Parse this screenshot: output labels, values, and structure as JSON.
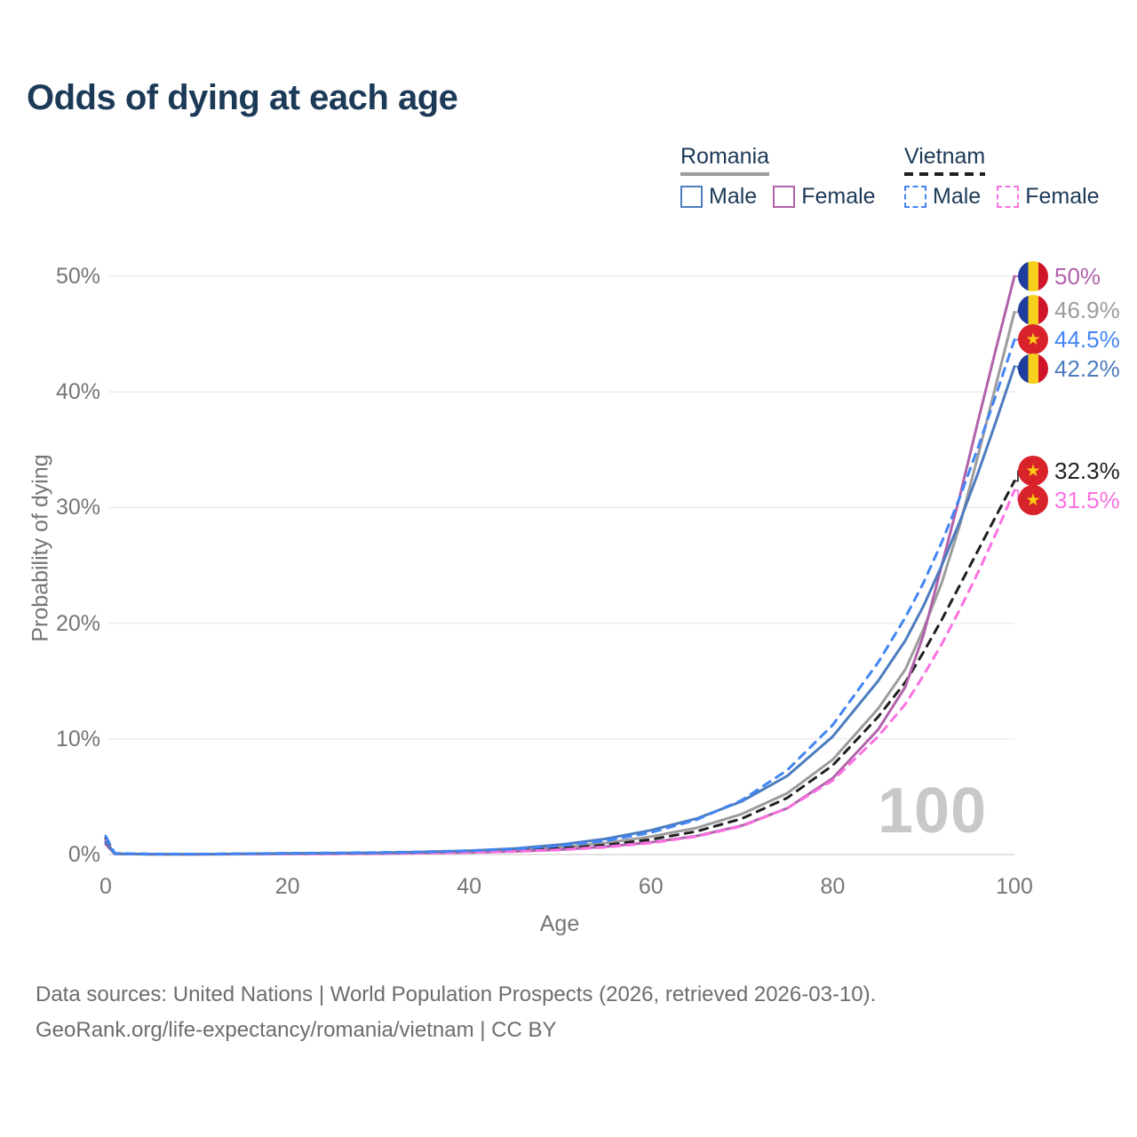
{
  "title": "Odds of dying at each age",
  "legend": {
    "groups": [
      {
        "id": "romania",
        "label": "Romania",
        "line_style": "solid",
        "line_color": "#9c9c9c",
        "items": [
          {
            "id": "romania-male",
            "label": "Male",
            "color": "#4c7cbe",
            "style": "solid"
          },
          {
            "id": "romania-female",
            "label": "Female",
            "color": "#b162ab",
            "style": "solid"
          }
        ]
      },
      {
        "id": "vietnam",
        "label": "Vietnam",
        "line_style": "dashed",
        "line_color": "#1f1f1f",
        "items": [
          {
            "id": "vietnam-male",
            "label": "Male",
            "color": "#4285f4",
            "style": "dashed"
          },
          {
            "id": "vietnam-female",
            "label": "Female",
            "color": "#fb71e1",
            "style": "dashed"
          }
        ]
      }
    ]
  },
  "chart_data": {
    "type": "line",
    "title": "Odds of dying at each age",
    "xlabel": "Age",
    "ylabel": "Probability of dying",
    "xlim": [
      0,
      100
    ],
    "ylim": [
      0,
      52
    ],
    "x_ticks": [
      0,
      20,
      40,
      60,
      80,
      100
    ],
    "y_ticks": [
      {
        "value": 0,
        "label": "0%"
      },
      {
        "value": 10,
        "label": "10%"
      },
      {
        "value": 20,
        "label": "20%"
      },
      {
        "value": 30,
        "label": "30%"
      },
      {
        "value": 40,
        "label": "40%"
      },
      {
        "value": 50,
        "label": "50%"
      }
    ],
    "grid": true,
    "legend_position": "top-right",
    "watermark": "100",
    "series": [
      {
        "id": "romania-total",
        "name": "Romania Total",
        "country": "Romania",
        "flag": "ro",
        "color": "#9c9c9c",
        "dashed": false,
        "end_value": 46.9,
        "end_label": "46.9%",
        "points": [
          [
            0,
            1.0
          ],
          [
            1,
            0.06
          ],
          [
            5,
            0.03
          ],
          [
            10,
            0.02
          ],
          [
            15,
            0.05
          ],
          [
            20,
            0.08
          ],
          [
            25,
            0.1
          ],
          [
            30,
            0.12
          ],
          [
            35,
            0.17
          ],
          [
            40,
            0.25
          ],
          [
            45,
            0.4
          ],
          [
            50,
            0.62
          ],
          [
            55,
            1.0
          ],
          [
            60,
            1.55
          ],
          [
            65,
            2.3
          ],
          [
            70,
            3.5
          ],
          [
            75,
            5.3
          ],
          [
            80,
            8.2
          ],
          [
            85,
            12.6
          ],
          [
            88,
            16.0
          ],
          [
            90,
            19.5
          ],
          [
            92,
            23.5
          ],
          [
            94,
            28.5
          ],
          [
            96,
            34.5
          ],
          [
            98,
            40.7
          ],
          [
            100,
            46.9
          ]
        ]
      },
      {
        "id": "vietnam-total",
        "name": "Vietnam Total",
        "country": "Vietnam",
        "flag": "vn",
        "color": "#1f1f1f",
        "dashed": true,
        "end_value": 32.3,
        "end_label": "32.3%",
        "points": [
          [
            0,
            1.4
          ],
          [
            1,
            0.09
          ],
          [
            5,
            0.04
          ],
          [
            10,
            0.03
          ],
          [
            15,
            0.06
          ],
          [
            20,
            0.09
          ],
          [
            25,
            0.11
          ],
          [
            30,
            0.14
          ],
          [
            35,
            0.18
          ],
          [
            40,
            0.24
          ],
          [
            45,
            0.35
          ],
          [
            50,
            0.52
          ],
          [
            55,
            0.82
          ],
          [
            60,
            1.3
          ],
          [
            65,
            2.0
          ],
          [
            70,
            3.1
          ],
          [
            75,
            4.9
          ],
          [
            80,
            7.7
          ],
          [
            85,
            11.9
          ],
          [
            88,
            14.9
          ],
          [
            90,
            17.5
          ],
          [
            92,
            20.3
          ],
          [
            94,
            23.3
          ],
          [
            96,
            26.3
          ],
          [
            98,
            29.3
          ],
          [
            100,
            32.3
          ]
        ]
      },
      {
        "id": "romania-female",
        "name": "Romania Female",
        "country": "Romania",
        "flag": "ro",
        "color": "#b162ab",
        "dashed": false,
        "end_value": 50.0,
        "end_label": "50%",
        "points": [
          [
            0,
            0.9
          ],
          [
            1,
            0.05
          ],
          [
            5,
            0.02
          ],
          [
            10,
            0.02
          ],
          [
            15,
            0.04
          ],
          [
            20,
            0.05
          ],
          [
            25,
            0.06
          ],
          [
            30,
            0.08
          ],
          [
            35,
            0.12
          ],
          [
            40,
            0.17
          ],
          [
            45,
            0.27
          ],
          [
            50,
            0.42
          ],
          [
            55,
            0.68
          ],
          [
            60,
            1.05
          ],
          [
            65,
            1.6
          ],
          [
            70,
            2.5
          ],
          [
            75,
            4.0
          ],
          [
            80,
            6.6
          ],
          [
            85,
            10.8
          ],
          [
            88,
            14.5
          ],
          [
            90,
            19.0
          ],
          [
            92,
            25.0
          ],
          [
            94,
            31.0
          ],
          [
            96,
            37.5
          ],
          [
            98,
            43.8
          ],
          [
            100,
            50.0
          ]
        ]
      },
      {
        "id": "vietnam-female",
        "name": "Vietnam Female",
        "country": "Vietnam",
        "flag": "vn",
        "color": "#fb71e1",
        "dashed": true,
        "end_value": 31.5,
        "end_label": "31.5%",
        "points": [
          [
            0,
            1.2
          ],
          [
            1,
            0.08
          ],
          [
            5,
            0.03
          ],
          [
            10,
            0.02
          ],
          [
            15,
            0.04
          ],
          [
            20,
            0.06
          ],
          [
            25,
            0.08
          ],
          [
            30,
            0.1
          ],
          [
            35,
            0.13
          ],
          [
            40,
            0.18
          ],
          [
            45,
            0.26
          ],
          [
            50,
            0.4
          ],
          [
            55,
            0.62
          ],
          [
            60,
            1.0
          ],
          [
            65,
            1.55
          ],
          [
            70,
            2.45
          ],
          [
            75,
            4.0
          ],
          [
            80,
            6.4
          ],
          [
            85,
            10.2
          ],
          [
            88,
            13.0
          ],
          [
            90,
            15.5
          ],
          [
            92,
            18.2
          ],
          [
            94,
            21.2
          ],
          [
            96,
            24.4
          ],
          [
            98,
            27.8
          ],
          [
            100,
            31.5
          ]
        ]
      },
      {
        "id": "romania-male",
        "name": "Romania Male",
        "country": "Romania",
        "flag": "ro",
        "color": "#4c7cbe",
        "dashed": false,
        "end_value": 42.2,
        "end_label": "42.2%",
        "points": [
          [
            0,
            1.1
          ],
          [
            1,
            0.07
          ],
          [
            5,
            0.03
          ],
          [
            10,
            0.03
          ],
          [
            15,
            0.06
          ],
          [
            20,
            0.1
          ],
          [
            25,
            0.12
          ],
          [
            30,
            0.15
          ],
          [
            35,
            0.22
          ],
          [
            40,
            0.33
          ],
          [
            45,
            0.52
          ],
          [
            50,
            0.85
          ],
          [
            55,
            1.35
          ],
          [
            60,
            2.1
          ],
          [
            65,
            3.1
          ],
          [
            70,
            4.6
          ],
          [
            75,
            6.8
          ],
          [
            80,
            10.2
          ],
          [
            85,
            15.0
          ],
          [
            88,
            18.5
          ],
          [
            90,
            21.5
          ],
          [
            92,
            25.0
          ],
          [
            94,
            28.8
          ],
          [
            96,
            33.0
          ],
          [
            98,
            37.5
          ],
          [
            100,
            42.2
          ]
        ]
      },
      {
        "id": "vietnam-male",
        "name": "Vietnam Male",
        "country": "Vietnam",
        "flag": "vn",
        "color": "#4285f4",
        "dashed": true,
        "end_value": 44.5,
        "end_label": "44.5%",
        "points": [
          [
            0,
            1.6
          ],
          [
            1,
            0.1
          ],
          [
            5,
            0.05
          ],
          [
            10,
            0.04
          ],
          [
            15,
            0.07
          ],
          [
            20,
            0.11
          ],
          [
            25,
            0.14
          ],
          [
            30,
            0.18
          ],
          [
            35,
            0.24
          ],
          [
            40,
            0.33
          ],
          [
            45,
            0.48
          ],
          [
            50,
            0.75
          ],
          [
            55,
            1.2
          ],
          [
            60,
            1.9
          ],
          [
            65,
            3.0
          ],
          [
            70,
            4.7
          ],
          [
            75,
            7.3
          ],
          [
            80,
            11.2
          ],
          [
            85,
            16.6
          ],
          [
            88,
            20.5
          ],
          [
            90,
            23.5
          ],
          [
            92,
            27.0
          ],
          [
            94,
            30.9
          ],
          [
            96,
            35.2
          ],
          [
            98,
            39.8
          ],
          [
            100,
            44.5
          ]
        ]
      }
    ]
  },
  "footer": {
    "line1": "Data sources: United Nations | World Population Prospects (2026, retrieved 2026-03-10).",
    "line2": "GeoRank.org/life-expectancy/romania/vietnam | CC BY"
  }
}
